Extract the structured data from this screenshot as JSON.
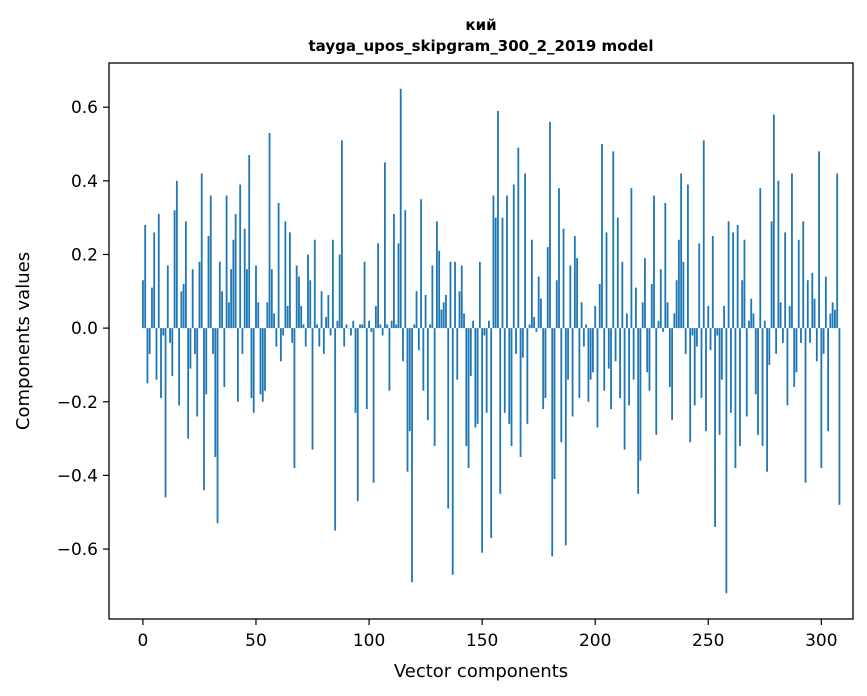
{
  "chart_data": {
    "type": "bar",
    "title": "кий",
    "subtitle": "tayga_upos_skipgram_300_2_2019 model",
    "xlabel": "Vector components",
    "ylabel": "Components values",
    "xlim": [
      -15,
      314
    ],
    "ylim": [
      -0.79,
      0.72
    ],
    "xticks": [
      0,
      50,
      100,
      150,
      200,
      250,
      300
    ],
    "xtick_labels": [
      "0",
      "50",
      "100",
      "150",
      "200",
      "250",
      "300"
    ],
    "yticks": [
      -0.6,
      -0.4,
      -0.2,
      0.0,
      0.2,
      0.4,
      0.6
    ],
    "ytick_labels": [
      "−0.6",
      "−0.4",
      "−0.2",
      "0.0",
      "0.2",
      "0.4",
      "0.6"
    ],
    "bar_color": "#1f77b4",
    "grid": false,
    "values": [
      0.13,
      0.28,
      -0.15,
      -0.07,
      0.11,
      0.26,
      -0.14,
      0.31,
      -0.19,
      -0.02,
      -0.46,
      0.17,
      -0.04,
      -0.13,
      0.32,
      0.4,
      -0.21,
      0.1,
      0.12,
      0.29,
      -0.3,
      -0.11,
      0.16,
      -0.07,
      -0.24,
      0.18,
      0.42,
      -0.44,
      -0.18,
      0.25,
      0.36,
      -0.07,
      -0.35,
      -0.53,
      0.18,
      0.1,
      -0.16,
      0.36,
      0.07,
      0.16,
      0.24,
      0.31,
      -0.2,
      0.39,
      -0.07,
      0.27,
      0.16,
      0.47,
      -0.19,
      -0.23,
      0.17,
      0.07,
      -0.18,
      -0.2,
      -0.17,
      0.07,
      0.53,
      0.16,
      0.04,
      -0.05,
      0.34,
      -0.09,
      -0.02,
      0.29,
      0.06,
      0.26,
      -0.04,
      -0.38,
      0.17,
      0.14,
      0.06,
      0.01,
      -0.05,
      0.2,
      0.13,
      -0.33,
      0.24,
      0.01,
      -0.05,
      0.1,
      -0.07,
      0.03,
      0.09,
      -0.02,
      0.24,
      -0.55,
      0.02,
      0.2,
      0.51,
      -0.05,
      0.01,
      0.0,
      -0.02,
      0.02,
      -0.23,
      -0.47,
      0.01,
      0.01,
      0.18,
      -0.22,
      0.02,
      -0.01,
      -0.42,
      0.06,
      0.23,
      0.01,
      -0.02,
      0.45,
      0.01,
      -0.17,
      0.02,
      0.31,
      0.01,
      0.23,
      0.65,
      -0.09,
      0.32,
      -0.39,
      -0.28,
      -0.69,
      0.01,
      0.1,
      -0.06,
      0.35,
      -0.17,
      0.09,
      -0.25,
      0.01,
      0.17,
      -0.32,
      0.29,
      0.21,
      0.05,
      0.07,
      0.09,
      -0.49,
      0.18,
      -0.67,
      0.18,
      -0.14,
      0.1,
      0.17,
      0.04,
      -0.32,
      -0.38,
      -0.13,
      0.02,
      -0.27,
      -0.26,
      0.18,
      -0.61,
      -0.02,
      -0.23,
      0.02,
      -0.57,
      0.36,
      0.3,
      0.59,
      -0.45,
      0.3,
      -0.23,
      0.36,
      -0.26,
      -0.32,
      0.39,
      -0.07,
      0.49,
      -0.35,
      -0.08,
      0.42,
      -0.26,
      0.01,
      0.24,
      0.03,
      -0.01,
      0.14,
      0.08,
      -0.22,
      -0.19,
      0.22,
      0.56,
      -0.62,
      -0.41,
      0.13,
      0.38,
      -0.31,
      0.27,
      -0.59,
      -0.14,
      0.17,
      -0.24,
      0.25,
      0.19,
      -0.19,
      0.07,
      -0.05,
      0.01,
      -0.2,
      -0.14,
      -0.12,
      0.06,
      -0.27,
      0.12,
      0.5,
      -0.17,
      0.26,
      -0.11,
      -0.22,
      0.48,
      -0.09,
      0.3,
      -0.19,
      0.18,
      -0.33,
      0.04,
      -0.21,
      0.38,
      -0.14,
      0.11,
      -0.45,
      -0.36,
      0.07,
      0.19,
      -0.12,
      -0.17,
      0.12,
      0.36,
      -0.29,
      0.02,
      0.16,
      -0.01,
      0.34,
      0.07,
      -0.16,
      -0.25,
      0.04,
      0.13,
      0.24,
      0.42,
      0.18,
      -0.07,
      0.39,
      -0.31,
      -0.02,
      -0.21,
      -0.05,
      0.23,
      -0.19,
      0.51,
      -0.28,
      0.06,
      -0.06,
      0.25,
      -0.54,
      -0.02,
      -0.29,
      -0.14,
      0.06,
      -0.72,
      0.29,
      -0.23,
      0.26,
      -0.38,
      0.28,
      -0.32,
      0.13,
      0.24,
      -0.24,
      0.02,
      0.08,
      0.04,
      -0.18,
      -0.29,
      0.38,
      -0.32,
      0.02,
      -0.39,
      -0.1,
      0.29,
      0.58,
      -0.07,
      0.4,
      0.07,
      -0.04,
      0.26,
      -0.21,
      0.06,
      0.42,
      -0.16,
      -0.12,
      0.24,
      -0.04,
      0.29,
      -0.42,
      0.13,
      -0.04,
      0.15,
      0.08,
      -0.09,
      0.48,
      -0.38,
      -0.07,
      0.14,
      -0.28,
      0.04,
      0.07,
      0.05,
      0.42,
      -0.48
    ]
  }
}
